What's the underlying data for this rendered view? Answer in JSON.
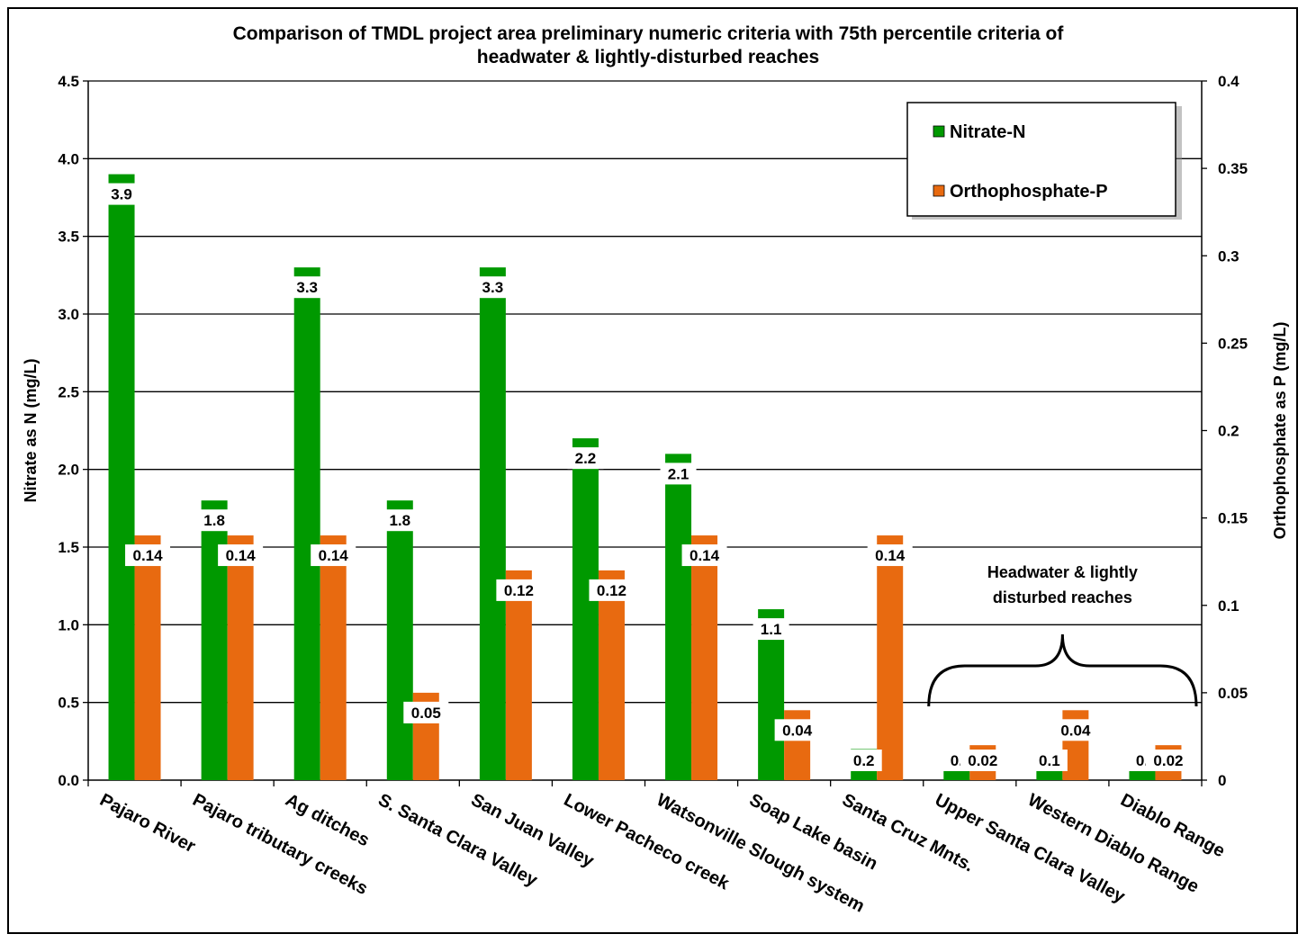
{
  "chart_data": {
    "type": "bar",
    "title": "Comparison of TMDL project area preliminary numeric criteria with 75th percentile criteria of headwater & lightly-disturbed reaches",
    "title_lines": [
      "Comparison of TMDL project area preliminary numeric criteria with 75th percentile criteria of",
      "headwater & lightly-disturbed reaches"
    ],
    "categories": [
      "Pajaro River",
      "Pajaro tributary creeks",
      "Ag ditches",
      "S. Santa Clara Valley",
      "San Juan Valley",
      "Lower Pacheco creek",
      "Watsonville Slough system",
      "Soap Lake basin",
      "Santa Cruz Mnts.",
      "Upper Santa Clara Valley",
      "Western Diablo Range",
      "Diablo Range"
    ],
    "series": [
      {
        "name": "Nitrate-N",
        "axis": "left",
        "color": "#009900",
        "values": [
          3.9,
          1.8,
          3.3,
          1.8,
          3.3,
          2.2,
          2.1,
          1.1,
          0.2,
          0.08,
          0.1,
          0.08
        ],
        "labels": [
          "3.9",
          "1.8",
          "3.3",
          "1.8",
          "3.3",
          "2.2",
          "2.1",
          "1.1",
          "0.2",
          "0.",
          "0.1",
          "0."
        ]
      },
      {
        "name": "Orthophosphate-P",
        "axis": "right",
        "color": "#e86a10",
        "values": [
          0.14,
          0.14,
          0.14,
          0.05,
          0.12,
          0.12,
          0.14,
          0.04,
          0.14,
          0.02,
          0.04,
          0.02
        ],
        "labels": [
          "0.14",
          "0.14",
          "0.14",
          "0.05",
          "0.12",
          "0.12",
          "0.14",
          "0.04",
          "0.14",
          "0.02",
          "0.04",
          "0.02"
        ]
      }
    ],
    "ylabel": "Nitrate as N (mg/L)",
    "ylabel_right": "Orthophosphate as P  (mg/L)",
    "ylim": [
      0,
      4.5
    ],
    "ylim_right": [
      0,
      0.4
    ],
    "yticks": [
      "0.0",
      "0.5",
      "1.0",
      "1.5",
      "2.0",
      "2.5",
      "3.0",
      "3.5",
      "4.0",
      "4.5"
    ],
    "yticks_right": [
      "0",
      "0.05",
      "0.1",
      "0.15",
      "0.2",
      "0.25",
      "0.3",
      "0.35",
      "0.4"
    ],
    "grid": true,
    "legend_position": "top-right",
    "annotation": {
      "lines": [
        "Headwater & lightly",
        "disturbed reaches"
      ],
      "from_category": 9,
      "to_category": 11
    }
  }
}
